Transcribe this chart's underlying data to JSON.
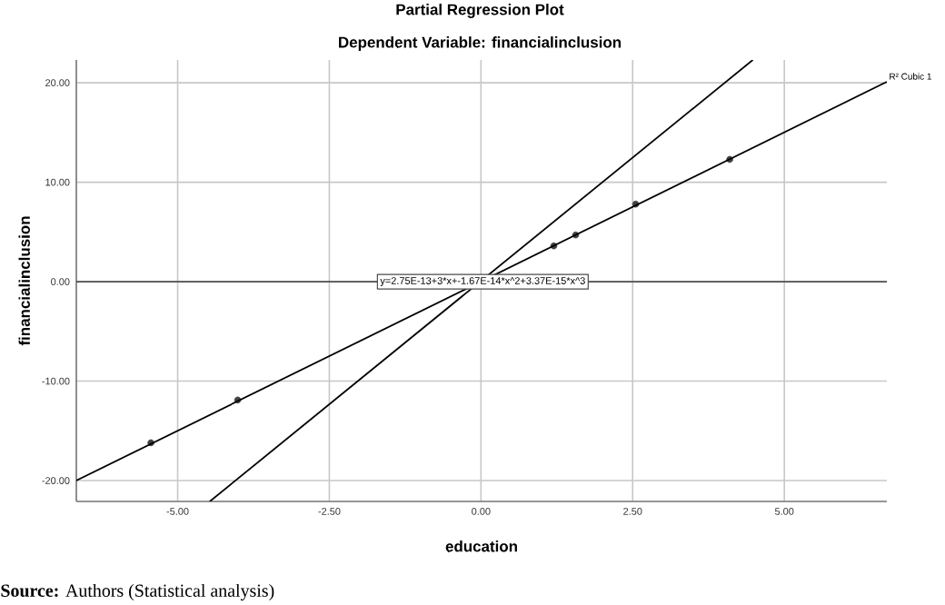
{
  "chart_data": {
    "type": "scatter",
    "title": "Partial Regression Plot",
    "subtitle": "Dependent Variable: financialinclusion",
    "xlabel": "education",
    "ylabel": "financialinclusion",
    "xlim": [
      -6.67,
      6.69
    ],
    "ylim": [
      -22.1,
      22.3
    ],
    "xticks": [
      {
        "value": -5,
        "label": "-5.00"
      },
      {
        "value": -2.5,
        "label": "-2.50"
      },
      {
        "value": 0,
        "label": "0.00"
      },
      {
        "value": 2.5,
        "label": "2.50"
      },
      {
        "value": 5,
        "label": "5.00"
      }
    ],
    "yticks": [
      {
        "value": -20,
        "label": "-20.00"
      },
      {
        "value": -10,
        "label": "-10.00"
      },
      {
        "value": 0,
        "label": "0.00"
      },
      {
        "value": 10,
        "label": "10.00"
      },
      {
        "value": 20,
        "label": "20.00"
      }
    ],
    "grid": true,
    "series": [
      {
        "color": "#404040",
        "marker": "circle",
        "x": [
          -5.44,
          -4.01,
          1.2,
          1.56,
          2.55,
          4.1
        ],
        "values": [
          -16.2,
          -11.9,
          3.6,
          4.7,
          7.8,
          12.3
        ]
      },
      {
        "type": "line",
        "name": "R² Cubic 1",
        "color": "#000000",
        "x": [
          -6.67,
          6.69
        ],
        "values": [
          -20.0,
          20.1
        ]
      },
      {
        "type": "line",
        "color": "#000000",
        "x": [
          -4.47,
          4.48
        ],
        "values": [
          -22.1,
          22.3
        ]
      }
    ],
    "ref_lines": [
      {
        "axis": "y",
        "value": 0,
        "color": "#505050"
      }
    ],
    "annotations": [
      "y=2.75E-13+3*x+-1.67E-14*x^2+3.37E-15*x^3",
      "**Source:** Authors (Statistical analysis)"
    ]
  }
}
